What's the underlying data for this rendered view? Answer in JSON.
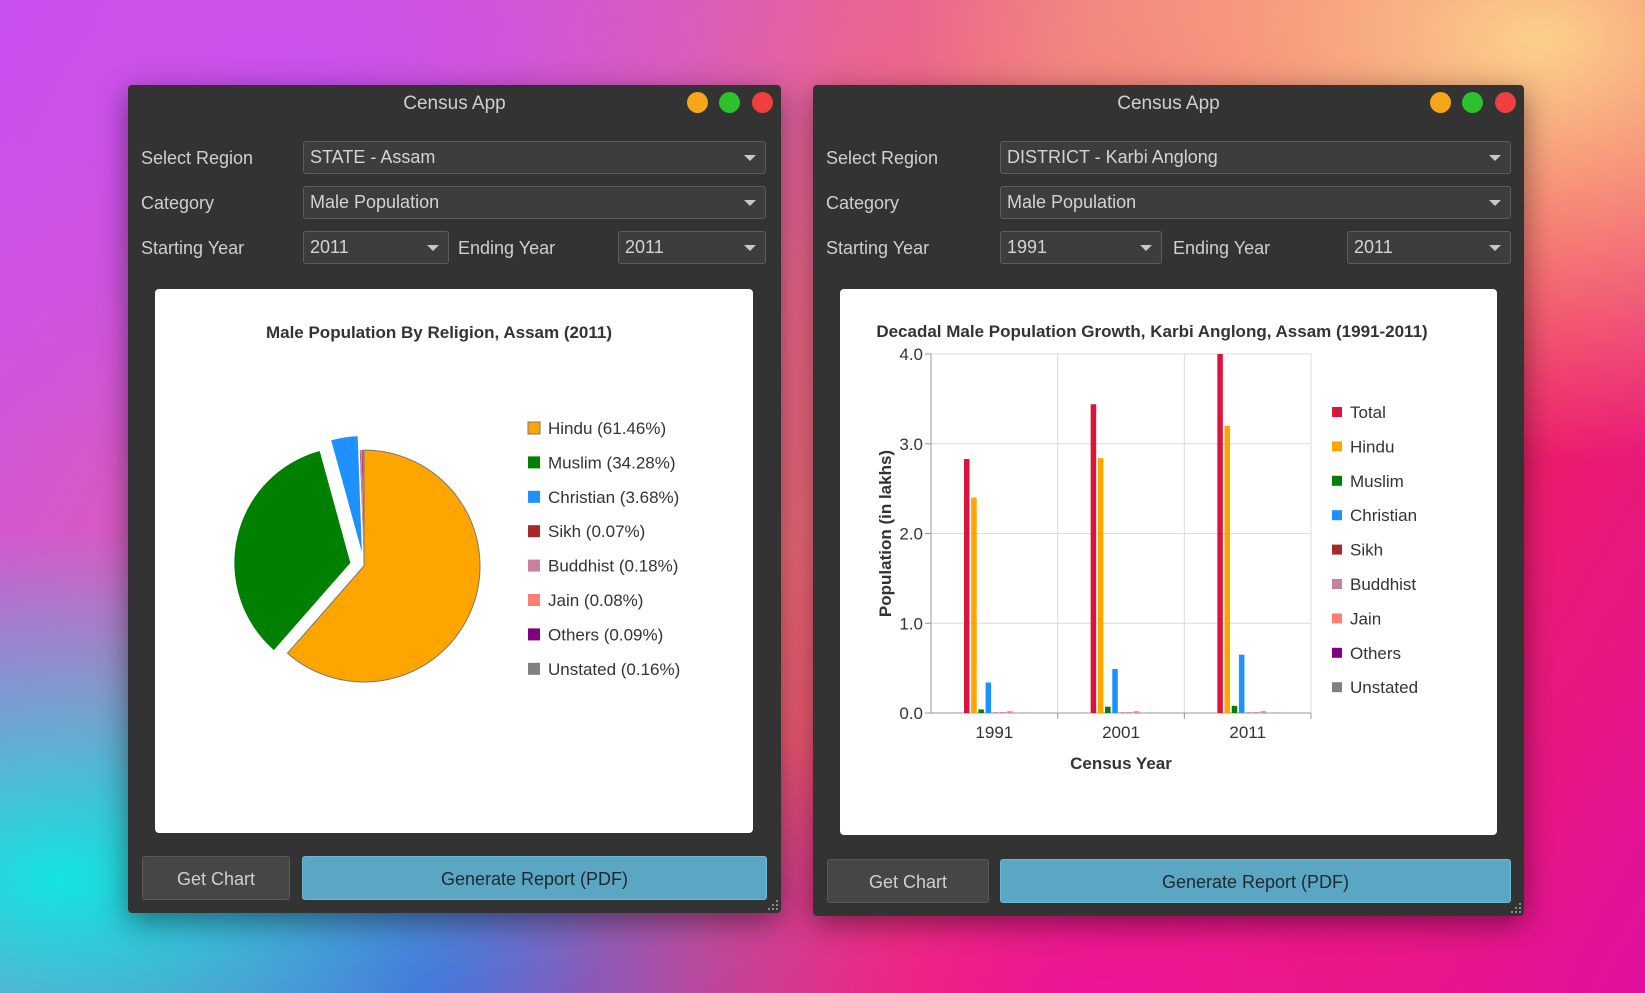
{
  "windows": [
    {
      "title": "Census App",
      "region_label": "Select Region",
      "region_value": "STATE - Assam",
      "category_label": "Category",
      "category_value": "Male Population",
      "start_label": "Starting Year",
      "start_value": "2011",
      "end_label": "Ending Year",
      "end_value": "2011",
      "get_chart_label": "Get Chart",
      "report_label": "Generate Report (PDF)"
    },
    {
      "title": "Census App",
      "region_label": "Select Region",
      "region_value": "DISTRICT - Karbi Anglong",
      "category_label": "Category",
      "category_value": "Male Population",
      "start_label": "Starting Year",
      "start_value": "1991",
      "end_label": "Ending Year",
      "end_value": "2011",
      "get_chart_label": "Get Chart",
      "report_label": "Generate Report (PDF)"
    }
  ],
  "window_buttons": {
    "minimize_icon": "minimize-icon",
    "maximize_icon": "maximize-icon",
    "close_icon": "close-icon"
  },
  "colors": {
    "Total": "#dc143c",
    "Hindu": "#ffa500",
    "Muslim": "#008000",
    "Christian": "#1e90ff",
    "Sikh": "#a52a2a",
    "Buddhist": "#c9829d",
    "Jain": "#fa8072",
    "Others": "#800080",
    "Unstated": "#808080"
  },
  "chart_data": [
    {
      "type": "pie",
      "title": "Male Population By Religion, Assam (2011)",
      "slices": [
        {
          "label": "Hindu (61.46%)",
          "name": "Hindu",
          "value": 61.46,
          "exploded": false
        },
        {
          "label": "Muslim (34.28%)",
          "name": "Muslim",
          "value": 34.28,
          "exploded": true
        },
        {
          "label": "Christian (3.68%)",
          "name": "Christian",
          "value": 3.68,
          "exploded": true
        },
        {
          "label": "Sikh (0.07%)",
          "name": "Sikh",
          "value": 0.07,
          "exploded": false
        },
        {
          "label": "Buddhist (0.18%)",
          "name": "Buddhist",
          "value": 0.18,
          "exploded": false
        },
        {
          "label": "Jain (0.08%)",
          "name": "Jain",
          "value": 0.08,
          "exploded": false
        },
        {
          "label": "Others (0.09%)",
          "name": "Others",
          "value": 0.09,
          "exploded": false
        },
        {
          "label": "Unstated (0.16%)",
          "name": "Unstated",
          "value": 0.16,
          "exploded": false
        }
      ],
      "legend_position": "right"
    },
    {
      "type": "bar",
      "title": "Decadal Male Population Growth, Karbi Anglong, Assam (1991-2011)",
      "xlabel": "Census Year",
      "ylabel": "Population (in lakhs)",
      "categories": [
        "1991",
        "2001",
        "2011"
      ],
      "ylim": [
        0,
        4.0
      ],
      "yticks": [
        "0.0",
        "1.0",
        "2.0",
        "3.0",
        "4.0"
      ],
      "grid": true,
      "legend_position": "right",
      "series": [
        {
          "name": "Total",
          "values": [
            2.83,
            3.44,
            4.0
          ]
        },
        {
          "name": "Hindu",
          "values": [
            2.4,
            2.84,
            3.2
          ]
        },
        {
          "name": "Muslim",
          "values": [
            0.04,
            0.07,
            0.08
          ]
        },
        {
          "name": "Christian",
          "values": [
            0.34,
            0.49,
            0.65
          ]
        },
        {
          "name": "Sikh",
          "values": [
            0.005,
            0.005,
            0.005
          ]
        },
        {
          "name": "Buddhist",
          "values": [
            0.01,
            0.01,
            0.01
          ]
        },
        {
          "name": "Jain",
          "values": [
            0.02,
            0.02,
            0.02
          ]
        },
        {
          "name": "Others",
          "values": [
            0.0,
            0.0,
            0.0
          ]
        },
        {
          "name": "Unstated",
          "values": [
            0.003,
            0.003,
            0.003
          ]
        }
      ]
    }
  ]
}
